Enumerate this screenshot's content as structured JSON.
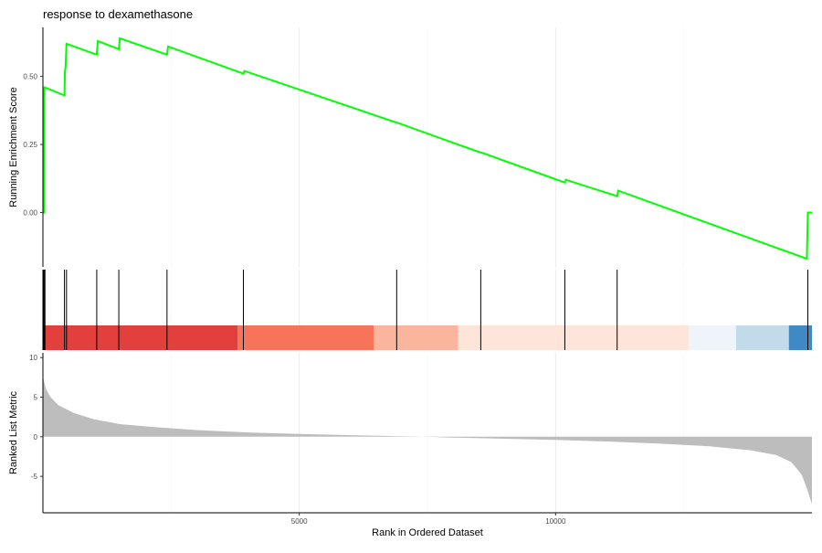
{
  "chart_data": {
    "type": "line",
    "title": "response to dexamethasone",
    "xlabel": "Rank in Ordered Dataset",
    "xlim": [
      0,
      15000
    ],
    "x_ticks": [
      5000,
      10000
    ],
    "running_es": {
      "ylabel": "Running Enrichment Score",
      "ylim": [
        -0.2,
        0.68
      ],
      "y_ticks": [
        0.0,
        0.25,
        0.5
      ],
      "y_tick_labels": [
        "0.00",
        "0.25",
        "0.50"
      ],
      "line_color": "#00ff00",
      "points": [
        [
          0,
          0.0
        ],
        [
          20,
          0.0
        ],
        [
          25,
          0.45
        ],
        [
          30,
          0.46
        ],
        [
          420,
          0.43
        ],
        [
          430,
          0.52
        ],
        [
          440,
          0.53
        ],
        [
          460,
          0.62
        ],
        [
          1050,
          0.58
        ],
        [
          1070,
          0.63
        ],
        [
          1480,
          0.6
        ],
        [
          1500,
          0.64
        ],
        [
          2420,
          0.58
        ],
        [
          2440,
          0.61
        ],
        [
          3910,
          0.51
        ],
        [
          3930,
          0.52
        ],
        [
          6900,
          0.33
        ],
        [
          6910,
          0.33
        ],
        [
          8540,
          0.22
        ],
        [
          8560,
          0.22
        ],
        [
          10180,
          0.11
        ],
        [
          10200,
          0.12
        ],
        [
          11200,
          0.06
        ],
        [
          11220,
          0.08
        ],
        [
          14900,
          -0.17
        ],
        [
          14920,
          0.0
        ],
        [
          15000,
          0.0
        ]
      ]
    },
    "hit_positions": [
      10,
      25,
      40,
      420,
      460,
      1050,
      1480,
      2420,
      3910,
      6900,
      8540,
      10180,
      11200,
      14920
    ],
    "color_bar": [
      {
        "from": 0,
        "to": 3800,
        "color": "#e3403d"
      },
      {
        "from": 3800,
        "to": 6450,
        "color": "#f7735a"
      },
      {
        "from": 6450,
        "to": 8100,
        "color": "#fbb49d"
      },
      {
        "from": 8100,
        "to": 12600,
        "color": "#fee4d9"
      },
      {
        "from": 12600,
        "to": 13520,
        "color": "#eff4fb"
      },
      {
        "from": 13520,
        "to": 14550,
        "color": "#c2dbea"
      },
      {
        "from": 14550,
        "to": 15000,
        "color": "#3f8ac4"
      }
    ],
    "ranked_metric": {
      "ylabel": "Ranked List Metric",
      "ylim": [
        -9.6,
        10.6
      ],
      "y_ticks": [
        -5,
        0,
        5,
        10
      ],
      "y_tick_labels": [
        "-5",
        "0",
        "5",
        "10"
      ],
      "fill_color": "#bdbdbd",
      "points": [
        [
          0,
          7.6
        ],
        [
          60,
          6.0
        ],
        [
          150,
          5.0
        ],
        [
          300,
          4.0
        ],
        [
          600,
          3.0
        ],
        [
          1000,
          2.2
        ],
        [
          1500,
          1.6
        ],
        [
          2200,
          1.2
        ],
        [
          3000,
          0.85
        ],
        [
          4000,
          0.55
        ],
        [
          5000,
          0.35
        ],
        [
          6000,
          0.2
        ],
        [
          7000,
          0.07
        ],
        [
          7400,
          0.0
        ],
        [
          8000,
          -0.1
        ],
        [
          9000,
          -0.25
        ],
        [
          10000,
          -0.4
        ],
        [
          11000,
          -0.6
        ],
        [
          12000,
          -0.85
        ],
        [
          13000,
          -1.2
        ],
        [
          13800,
          -1.7
        ],
        [
          14300,
          -2.3
        ],
        [
          14600,
          -3.2
        ],
        [
          14800,
          -4.8
        ],
        [
          14900,
          -6.5
        ],
        [
          15000,
          -8.5
        ]
      ]
    }
  }
}
